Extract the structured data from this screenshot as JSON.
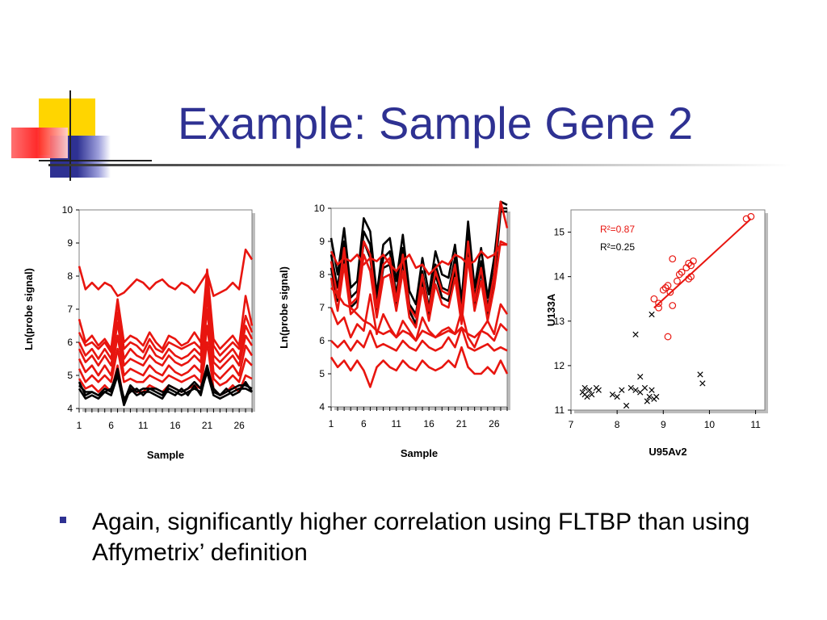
{
  "slide": {
    "title": "Example: Sample Gene 2",
    "bullet": "Again, significantly higher correlation using FLTBP than using Affymetrix’ definition",
    "colors": {
      "title": "#2E3192",
      "red": "#E8150F",
      "black": "#000000"
    }
  },
  "chart_data": [
    {
      "type": "line",
      "xlabel": "Sample",
      "ylabel": "Ln(probe signal)",
      "xticks": [
        1,
        6,
        11,
        16,
        21,
        26
      ],
      "xlim": [
        1,
        28
      ],
      "ylim": [
        4,
        10
      ],
      "yticks": [
        4,
        5,
        6,
        7,
        8,
        9,
        10
      ],
      "grid": false,
      "series": [
        {
          "color": "red",
          "values": [
            8.3,
            7.6,
            7.8,
            7.6,
            7.8,
            7.7,
            7.4,
            7.5,
            7.7,
            7.9,
            7.8,
            7.6,
            7.8,
            7.9,
            7.7,
            7.6,
            7.8,
            7.7,
            7.5,
            7.8,
            8.1,
            7.4,
            7.5,
            7.6,
            7.8,
            7.6,
            8.8,
            8.5
          ]
        },
        {
          "color": "red",
          "values": [
            6.7,
            6.0,
            6.2,
            5.9,
            6.1,
            5.8,
            7.3,
            6.0,
            6.2,
            6.1,
            5.9,
            6.3,
            6.0,
            5.8,
            6.2,
            6.1,
            5.9,
            6.0,
            6.3,
            6.0,
            8.2,
            6.1,
            5.8,
            6.0,
            6.2,
            5.9,
            7.4,
            6.5
          ]
        },
        {
          "color": "red",
          "values": [
            6.3,
            5.9,
            6.0,
            5.8,
            6.0,
            5.7,
            7.2,
            5.8,
            6.0,
            5.9,
            5.7,
            6.1,
            5.8,
            5.7,
            6.0,
            5.9,
            5.8,
            5.9,
            6.0,
            5.8,
            8.0,
            5.9,
            5.6,
            5.8,
            6.0,
            5.8,
            6.8,
            6.3
          ]
        },
        {
          "color": "red",
          "values": [
            6.0,
            5.6,
            5.8,
            5.5,
            5.8,
            5.5,
            6.9,
            5.5,
            5.8,
            5.6,
            5.5,
            5.9,
            5.6,
            5.5,
            5.8,
            5.6,
            5.5,
            5.6,
            5.8,
            5.6,
            7.7,
            5.6,
            5.4,
            5.6,
            5.8,
            5.5,
            6.5,
            6.1
          ]
        },
        {
          "color": "red",
          "values": [
            5.8,
            5.4,
            5.6,
            5.3,
            5.6,
            5.3,
            6.6,
            5.3,
            5.5,
            5.4,
            5.3,
            5.6,
            5.4,
            5.3,
            5.6,
            5.4,
            5.3,
            5.4,
            5.6,
            5.4,
            7.4,
            5.4,
            5.2,
            5.4,
            5.6,
            5.3,
            6.2,
            5.9
          ]
        },
        {
          "color": "red",
          "values": [
            5.5,
            5.1,
            5.3,
            5.0,
            5.3,
            5.0,
            6.2,
            5.0,
            5.2,
            5.1,
            5.0,
            5.3,
            5.1,
            5.0,
            5.3,
            5.1,
            5.0,
            5.1,
            5.3,
            5.1,
            7.0,
            5.1,
            4.9,
            5.1,
            5.3,
            5.0,
            5.9,
            5.6
          ]
        },
        {
          "color": "red",
          "values": [
            5.2,
            4.8,
            5.0,
            4.8,
            5.0,
            4.8,
            5.8,
            4.8,
            4.9,
            4.8,
            4.8,
            5.0,
            4.9,
            4.8,
            5.0,
            4.9,
            4.8,
            4.9,
            5.0,
            4.8,
            6.5,
            4.9,
            4.7,
            4.8,
            5.0,
            4.8,
            5.5,
            5.3
          ]
        },
        {
          "color": "red",
          "values": [
            4.9,
            4.6,
            4.7,
            4.5,
            4.7,
            4.5,
            5.3,
            4.2,
            4.6,
            4.5,
            4.5,
            4.7,
            4.6,
            4.5,
            4.7,
            4.6,
            4.5,
            4.6,
            4.7,
            4.6,
            6.0,
            4.6,
            4.4,
            4.5,
            4.7,
            4.5,
            5.0,
            4.9
          ]
        },
        {
          "color": "black",
          "values": [
            4.8,
            4.4,
            4.5,
            4.4,
            4.6,
            4.5,
            5.2,
            4.2,
            4.7,
            4.5,
            4.6,
            4.6,
            4.5,
            4.4,
            4.7,
            4.6,
            4.5,
            4.6,
            4.8,
            4.6,
            5.3,
            4.5,
            4.4,
            4.5,
            4.6,
            4.7,
            4.7,
            4.6
          ]
        },
        {
          "color": "black",
          "values": [
            4.6,
            4.3,
            4.4,
            4.3,
            4.5,
            4.4,
            5.0,
            4.1,
            4.6,
            4.4,
            4.5,
            4.5,
            4.4,
            4.3,
            4.6,
            4.5,
            4.4,
            4.5,
            4.6,
            4.5,
            5.1,
            4.4,
            4.3,
            4.4,
            4.5,
            4.6,
            4.6,
            4.5
          ]
        },
        {
          "color": "black",
          "values": [
            4.7,
            4.5,
            4.5,
            4.4,
            4.5,
            4.6,
            5.1,
            4.3,
            4.5,
            4.6,
            4.4,
            4.6,
            4.6,
            4.5,
            4.5,
            4.4,
            4.6,
            4.4,
            4.7,
            4.4,
            5.2,
            4.6,
            4.4,
            4.6,
            4.4,
            4.5,
            4.8,
            4.5
          ]
        }
      ]
    },
    {
      "type": "line",
      "xlabel": "Sample",
      "ylabel": "Ln(probe signal)",
      "xticks": [
        1,
        6,
        11,
        16,
        21,
        26
      ],
      "xlim": [
        1,
        28
      ],
      "ylim": [
        4,
        10
      ],
      "yticks": [
        4,
        5,
        6,
        7,
        8,
        9,
        10
      ],
      "grid": false,
      "series": [
        {
          "color": "black",
          "values": [
            9.1,
            8.0,
            9.4,
            7.6,
            7.8,
            9.7,
            9.3,
            7.4,
            8.9,
            9.1,
            7.8,
            9.2,
            7.5,
            7.1,
            8.5,
            7.4,
            8.7,
            8.0,
            7.9,
            8.9,
            7.2,
            9.6,
            7.6,
            8.8,
            7.3,
            8.5,
            10.2,
            10.1
          ]
        },
        {
          "color": "black",
          "values": [
            8.6,
            7.6,
            9.0,
            7.3,
            7.5,
            9.3,
            8.9,
            7.1,
            8.5,
            8.7,
            7.4,
            8.8,
            7.1,
            6.8,
            8.1,
            7.0,
            8.3,
            7.6,
            7.5,
            8.5,
            6.9,
            9.2,
            7.3,
            8.4,
            7.0,
            8.1,
            10.0,
            10.0
          ]
        },
        {
          "color": "black",
          "values": [
            8.2,
            7.2,
            8.6,
            7.0,
            7.2,
            9.0,
            8.5,
            6.9,
            8.2,
            8.3,
            7.1,
            8.4,
            6.9,
            6.5,
            7.8,
            6.8,
            8.0,
            7.3,
            7.2,
            8.1,
            6.6,
            8.8,
            7.0,
            8.1,
            6.7,
            7.8,
            9.9,
            9.9
          ]
        },
        {
          "color": "red",
          "values": [
            8.7,
            8.3,
            8.5,
            8.4,
            8.6,
            8.3,
            8.5,
            8.4,
            8.6,
            8.3,
            8.1,
            8.4,
            8.6,
            8.2,
            8.3,
            8.0,
            8.2,
            8.4,
            8.3,
            8.6,
            8.5,
            8.3,
            8.4,
            8.7,
            8.5,
            8.6,
            8.9,
            8.9
          ]
        },
        {
          "color": "red",
          "values": [
            8.4,
            7.3,
            8.8,
            7.1,
            7.3,
            9.0,
            8.6,
            7.0,
            8.3,
            8.5,
            7.2,
            8.6,
            7.0,
            6.7,
            8.0,
            6.9,
            8.1,
            7.5,
            7.4,
            8.3,
            6.8,
            9.0,
            7.2,
            8.2,
            6.9,
            8.0,
            10.2,
            9.4
          ]
        },
        {
          "color": "red",
          "values": [
            7.9,
            6.9,
            8.3,
            6.8,
            7.0,
            8.6,
            8.1,
            6.7,
            7.9,
            8.0,
            6.9,
            8.1,
            6.7,
            6.4,
            7.6,
            6.6,
            7.7,
            7.1,
            7.0,
            7.9,
            6.5,
            8.5,
            6.9,
            7.8,
            6.6,
            7.6,
            9.0,
            8.9
          ]
        },
        {
          "color": "red",
          "values": [
            7.6,
            7.4,
            7.1,
            7.0,
            6.8,
            6.6,
            6.5,
            6.3,
            6.2,
            6.3,
            6.1,
            6.3,
            6.2,
            6.0,
            6.3,
            6.2,
            6.1,
            6.2,
            6.3,
            6.2,
            6.4,
            6.2,
            6.1,
            6.3,
            6.2,
            6.0,
            6.5,
            6.3
          ]
        },
        {
          "color": "red",
          "values": [
            7.0,
            6.5,
            6.7,
            6.1,
            6.5,
            6.3,
            7.4,
            6.2,
            6.8,
            6.4,
            6.1,
            6.6,
            6.3,
            6.0,
            6.7,
            6.3,
            6.1,
            6.3,
            6.4,
            6.2,
            6.9,
            6.1,
            5.8,
            6.3,
            6.6,
            6.2,
            7.1,
            6.8
          ]
        },
        {
          "color": "red",
          "values": [
            6.0,
            5.8,
            6.0,
            5.7,
            6.0,
            5.8,
            6.3,
            5.8,
            5.9,
            5.8,
            5.7,
            6.0,
            5.8,
            5.7,
            6.0,
            5.8,
            5.7,
            5.8,
            6.1,
            5.8,
            6.4,
            5.8,
            5.7,
            5.8,
            5.9,
            5.7,
            5.8,
            5.7
          ]
        },
        {
          "color": "red",
          "values": [
            5.5,
            5.2,
            5.4,
            5.1,
            5.4,
            5.1,
            4.6,
            5.2,
            5.4,
            5.2,
            5.1,
            5.4,
            5.2,
            5.1,
            5.4,
            5.2,
            5.1,
            5.2,
            5.4,
            5.2,
            5.8,
            5.2,
            5.0,
            5.0,
            5.2,
            5.0,
            5.4,
            5.0
          ]
        }
      ]
    },
    {
      "type": "scatter",
      "xlabel": "U95Av2",
      "ylabel": "U133A",
      "xticks": [
        7,
        8,
        9,
        10,
        11
      ],
      "yticks": [
        11,
        12,
        13,
        14,
        15
      ],
      "xlim": [
        7,
        11.2
      ],
      "ylim": [
        11,
        15.5
      ],
      "grid": false,
      "annotations": [
        {
          "label": "R²=0.87",
          "color": "red"
        },
        {
          "label": "R²=0.25",
          "color": "black"
        }
      ],
      "series": [
        {
          "marker": "circle",
          "color": "red",
          "trend": [
            [
              8.8,
              13.3
            ],
            [
              10.9,
              15.3
            ]
          ],
          "points": [
            [
              8.8,
              13.5
            ],
            [
              8.9,
              13.3
            ],
            [
              9.0,
              13.7
            ],
            [
              9.05,
              13.75
            ],
            [
              9.1,
              13.8
            ],
            [
              9.15,
              13.65
            ],
            [
              9.2,
              13.35
            ],
            [
              9.2,
              14.4
            ],
            [
              9.3,
              13.9
            ],
            [
              9.35,
              14.05
            ],
            [
              9.4,
              14.1
            ],
            [
              9.5,
              14.2
            ],
            [
              9.55,
              14.3
            ],
            [
              9.6,
              14.25
            ],
            [
              9.65,
              14.35
            ],
            [
              9.55,
              13.95
            ],
            [
              9.6,
              14.0
            ],
            [
              9.1,
              12.65
            ],
            [
              10.8,
              15.3
            ],
            [
              10.9,
              15.35
            ],
            [
              8.9,
              13.4
            ]
          ]
        },
        {
          "marker": "x",
          "color": "black",
          "points": [
            [
              7.25,
              11.4
            ],
            [
              7.3,
              11.5
            ],
            [
              7.35,
              11.3
            ],
            [
              7.4,
              11.45
            ],
            [
              7.45,
              11.35
            ],
            [
              7.55,
              11.5
            ],
            [
              7.6,
              11.45
            ],
            [
              7.9,
              11.35
            ],
            [
              8.0,
              11.3
            ],
            [
              8.1,
              11.45
            ],
            [
              8.2,
              11.1
            ],
            [
              8.3,
              11.5
            ],
            [
              8.4,
              11.45
            ],
            [
              8.5,
              11.4
            ],
            [
              8.6,
              11.5
            ],
            [
              8.65,
              11.2
            ],
            [
              8.7,
              11.3
            ],
            [
              8.75,
              11.45
            ],
            [
              8.8,
              11.25
            ],
            [
              8.85,
              11.3
            ],
            [
              8.4,
              12.7
            ],
            [
              8.5,
              11.75
            ],
            [
              8.75,
              13.15
            ],
            [
              9.8,
              11.8
            ],
            [
              9.85,
              11.6
            ],
            [
              7.3,
              11.35
            ]
          ]
        }
      ]
    }
  ]
}
